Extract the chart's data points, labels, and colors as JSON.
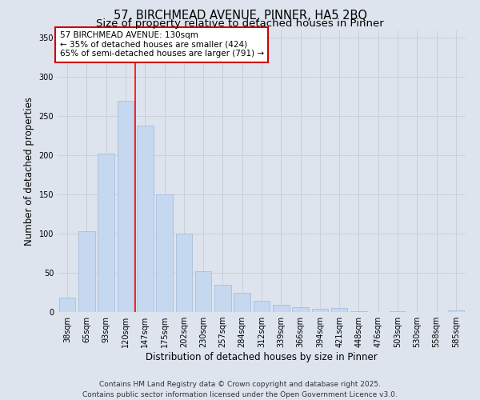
{
  "title_line1": "57, BIRCHMEAD AVENUE, PINNER, HA5 2BQ",
  "title_line2": "Size of property relative to detached houses in Pinner",
  "xlabel": "Distribution of detached houses by size in Pinner",
  "ylabel": "Number of detached properties",
  "categories": [
    "38sqm",
    "65sqm",
    "93sqm",
    "120sqm",
    "147sqm",
    "175sqm",
    "202sqm",
    "230sqm",
    "257sqm",
    "284sqm",
    "312sqm",
    "339sqm",
    "366sqm",
    "394sqm",
    "421sqm",
    "448sqm",
    "476sqm",
    "503sqm",
    "530sqm",
    "558sqm",
    "585sqm"
  ],
  "values": [
    18,
    103,
    202,
    270,
    238,
    150,
    100,
    52,
    35,
    25,
    14,
    9,
    6,
    4,
    5,
    1,
    0,
    1,
    0,
    0,
    2
  ],
  "bar_color": "#c5d8f0",
  "bar_edgecolor": "#a0b8d8",
  "grid_color": "#c8d0dc",
  "background_color": "#dde4ee",
  "annotation_box_text": "57 BIRCHMEAD AVENUE: 130sqm\n← 35% of detached houses are smaller (424)\n65% of semi-detached houses are larger (791) →",
  "annotation_box_color": "#ffffff",
  "annotation_box_edgecolor": "#cc0000",
  "red_line_x": 3.5,
  "ylim": [
    0,
    360
  ],
  "yticks": [
    0,
    50,
    100,
    150,
    200,
    250,
    300,
    350
  ],
  "footer_line1": "Contains HM Land Registry data © Crown copyright and database right 2025.",
  "footer_line2": "Contains public sector information licensed under the Open Government Licence v3.0.",
  "title_fontsize": 10.5,
  "subtitle_fontsize": 9.5,
  "axis_label_fontsize": 8.5,
  "tick_fontsize": 7,
  "annotation_fontsize": 7.5,
  "footer_fontsize": 6.5
}
